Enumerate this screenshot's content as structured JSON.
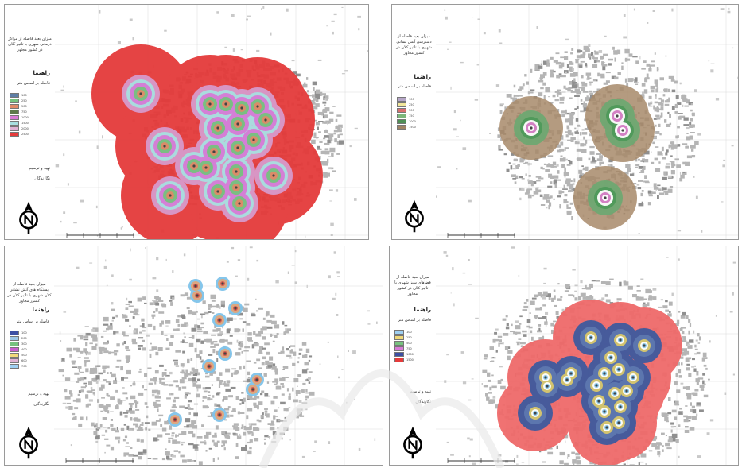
{
  "panels": [
    {
      "id": "top-left",
      "title": "میزان بعید فاصله از مراکز درمانی شهری با تاثیر کلان در کشور مجاور",
      "legend_heading": "راهنما",
      "legend_subheading": "فاصله بر اساس متر",
      "legend": [
        {
          "color": "#5f7fa6",
          "label": "100"
        },
        {
          "color": "#76c27e",
          "label": "250"
        },
        {
          "color": "#e08a68",
          "label": "500"
        },
        {
          "color": "#5c7a4a",
          "label": "750"
        },
        {
          "color": "#d77bd6",
          "label": "1000"
        },
        {
          "color": "#a8dfe0",
          "label": "1500"
        },
        {
          "color": "#e0b2d4",
          "label": "2000"
        },
        {
          "color": "#e63b3b",
          "label": "2500"
        }
      ],
      "credit": [
        "تهیه و ترسیم",
        "نگارندگان"
      ],
      "buffer_colors": [
        "#e43a3a",
        "#d89acb",
        "#a8dfe0",
        "#d77bd6",
        "#76c27e",
        "#e08a68"
      ]
    },
    {
      "id": "top-right",
      "title": "میزان بعید فاصله از دسترسی آتش نشانی شهری با تاثیر کلان در کشور مجاور",
      "legend_heading": "راهنما",
      "legend_subheading": "فاصله بر اساس متر",
      "legend": [
        {
          "color": "#b6a6c7",
          "label": "100"
        },
        {
          "color": "#f2e79a",
          "label": "250"
        },
        {
          "color": "#d96f6f",
          "label": "500"
        },
        {
          "color": "#7cb67a",
          "label": "750"
        },
        {
          "color": "#4f8f56",
          "label": "1000"
        },
        {
          "color": "#9f8464",
          "label": "1500"
        }
      ],
      "credit": [
        "تهیه و ترسیم",
        "نگارندگان"
      ],
      "buffer_colors": [
        "#a88a6a",
        "#6fa872",
        "#4f9a5a",
        "#ffffff",
        "#d27bc2",
        "#ffffff"
      ]
    },
    {
      "id": "bottom-left",
      "title": "میزان بعید فاصله از ایستگاه های آتش نشانی کلان شهری با تاثیر کلان در کشور مجاور",
      "legend_heading": "راهنما",
      "legend_subheading": "فاصله بر اساس متر",
      "legend": [
        {
          "color": "#3d4fa3",
          "label": "100"
        },
        {
          "color": "#9ec7e6",
          "label": "200"
        },
        {
          "color": "#76c27e",
          "label": "300"
        },
        {
          "color": "#c95fcf",
          "label": "400"
        },
        {
          "color": "#f0d97a",
          "label": "500"
        },
        {
          "color": "#e0b2d4",
          "label": "600"
        },
        {
          "color": "#9fd0f2",
          "label": "700"
        }
      ],
      "credit": [
        "تهیه و ترسیم",
        "نگارندگان"
      ],
      "buffer_colors": [
        "#7fc3ea",
        "#e1a67a",
        "#d6574e"
      ]
    },
    {
      "id": "bottom-right",
      "title": "میزان بعید فاصله از فضاهای سبز شهری با تاثیر کلان در کشور مجاور",
      "legend_heading": "راهنما",
      "legend_subheading": "فاصله بر اساس متر",
      "legend": [
        {
          "color": "#9fd0f2",
          "label": "100"
        },
        {
          "color": "#f0d97a",
          "label": "250"
        },
        {
          "color": "#76c27e",
          "label": "500"
        },
        {
          "color": "#d77bd6",
          "label": "750"
        },
        {
          "color": "#3d4fa3",
          "label": "1000"
        },
        {
          "color": "#e63b3b",
          "label": "1500"
        }
      ],
      "credit": [
        "تهیه و ترسیم",
        "نگارندگان"
      ],
      "buffer_colors": [
        "#ef6a6a",
        "#3f5a9e",
        "#5e78b0",
        "#d9c86c",
        "#ffffff",
        "#7fc3ea"
      ]
    }
  ],
  "north_label": "N"
}
